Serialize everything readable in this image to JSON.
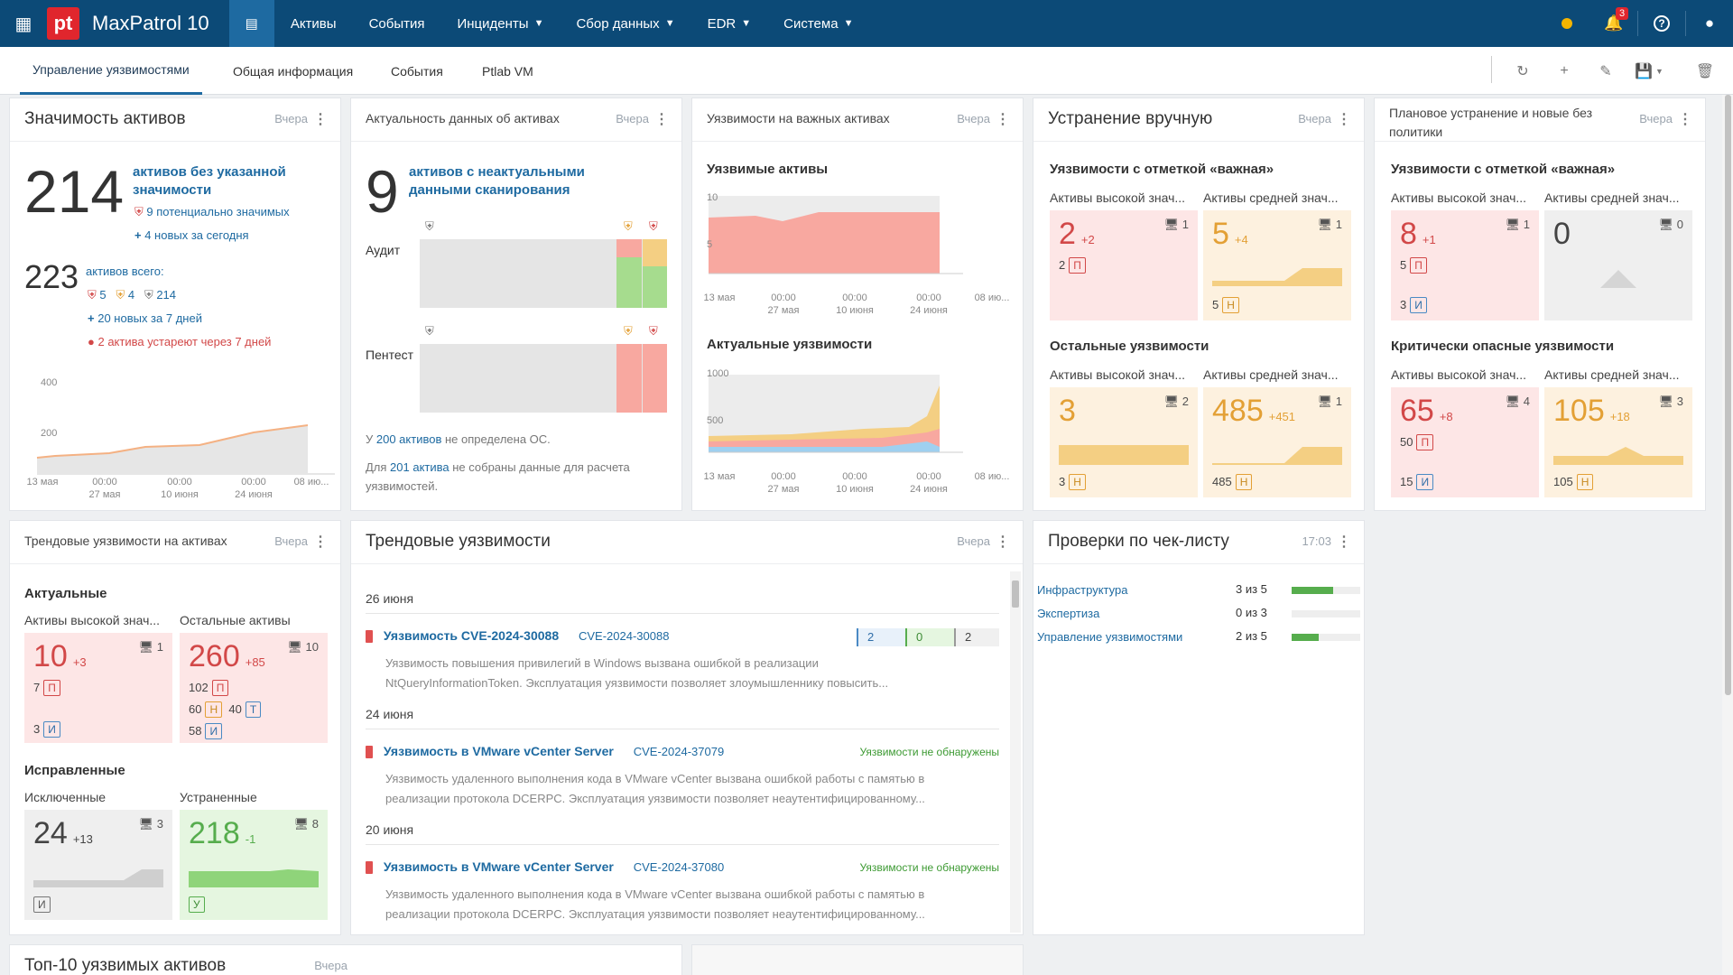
{
  "topbar": {
    "brand": "MaxPatrol 10",
    "logo": "pt",
    "nav": [
      {
        "label": "Активы",
        "dropdown": false
      },
      {
        "label": "События",
        "dropdown": false
      },
      {
        "label": "Инциденты",
        "dropdown": true
      },
      {
        "label": "Сбор данных",
        "dropdown": true
      },
      {
        "label": "EDR",
        "dropdown": true
      },
      {
        "label": "Система",
        "dropdown": true
      }
    ],
    "notifications_count": "3",
    "status_color": "#f5b400"
  },
  "tabs": [
    "Управление уязвимостями",
    "Общая информация",
    "События",
    "Ptlab VM"
  ],
  "w1": {
    "title": "Значимость активов",
    "date": "Вчера",
    "big": "214",
    "big_label": "активов без указанной значимости",
    "potential": "9 потенциально значимых",
    "new_today": "4 новых за сегодня",
    "total": "223",
    "total_label": "активов всего:",
    "c_red": "5",
    "c_yel": "4",
    "c_grey": "214",
    "new_week": "20 новых за 7 дней",
    "warning": "2 актива устареют через 7 дней"
  },
  "w2": {
    "title": "Актуальность данных об активах",
    "date": "Вчера",
    "big": "9",
    "big_label": "активов с неактуальными данными сканирования",
    "audit": "Аудит",
    "pentest": "Пентест",
    "os_pre": "У ",
    "os_link": "200 активов",
    "os_post": " не определена ОС.",
    "calc_pre": "Для ",
    "calc_link": "201 актива",
    "calc_post": " не собраны данные для расчета уязвимостей."
  },
  "w3": {
    "title": "Уязвимости на важных активах",
    "date": "Вчера",
    "s1": "Уязвимые активы",
    "s2": "Актуальные уязвимости",
    "y1_top": "10",
    "y1_mid": "5",
    "y2_top": "1000",
    "y2_mid": "500"
  },
  "axis": {
    "a1": "13 мая",
    "a2": "00:00",
    "a2b": "27 мая",
    "a3": "00:00",
    "a3b": "10 июня",
    "a4": "00:00",
    "a4b": "24 июня",
    "a5": "08 ию..."
  },
  "w4": {
    "title": "Устранение вручную",
    "date": "Вчера",
    "s1": "Уязвимости с отметкой «важная»",
    "s2": "Остальные уязвимости",
    "col_high": "Активы высокой знач...",
    "col_mid": "Активы средней знач...",
    "c1": {
      "num": "2",
      "delta": "+2",
      "mon": "1",
      "p": "2",
      "tag": "П"
    },
    "c2": {
      "num": "5",
      "delta": "+4",
      "mon": "1",
      "h": "5",
      "tag": "Н"
    },
    "c3": {
      "num": "3",
      "mon": "2",
      "h": "3",
      "tag": "Н"
    },
    "c4": {
      "num": "485",
      "delta": "+451",
      "mon": "1",
      "h": "485",
      "tag": "Н"
    }
  },
  "w5": {
    "title": "Плановое устранение и новые без политики",
    "date": "Вчера",
    "s1": "Уязвимости с отметкой «важная»",
    "s2": "Критически опасные уязвимости",
    "col_high": "Активы высокой знач...",
    "col_mid": "Активы средней знач...",
    "c1": {
      "num": "8",
      "delta": "+1",
      "mon": "1",
      "p": "5",
      "ptag": "П",
      "i": "3",
      "itag": "И"
    },
    "c2": {
      "num": "0",
      "mon": "0"
    },
    "c3": {
      "num": "65",
      "delta": "+8",
      "mon": "4",
      "p": "50",
      "ptag": "П",
      "i": "15",
      "itag": "И"
    },
    "c4": {
      "num": "105",
      "delta": "+18",
      "mon": "3",
      "h": "105",
      "tag": "Н"
    }
  },
  "w6": {
    "title": "Трендовые уязвимости на активах",
    "date": "Вчера",
    "s1": "Актуальные",
    "s2": "Исправленные",
    "col_high": "Активы высокой знач...",
    "col_other": "Остальные активы",
    "col_excl": "Исключенные",
    "col_fixed": "Устраненные",
    "c1": {
      "num": "10",
      "delta": "+3",
      "mon": "1",
      "p": "7",
      "ptag": "П",
      "i": "3",
      "itag": "И"
    },
    "c2": {
      "num": "260",
      "delta": "+85",
      "mon": "10",
      "p": "102",
      "ptag": "П",
      "h": "60",
      "htag": "Н",
      "t": "40",
      "ttag": "Т",
      "i": "58",
      "itag": "И"
    },
    "c3": {
      "num": "24",
      "delta": "+13",
      "mon": "3",
      "tag": "И"
    },
    "c4": {
      "num": "218",
      "delta": "-1",
      "mon": "8",
      "tag": "У"
    }
  },
  "w7": {
    "title": "Трендовые уязвимости",
    "date": "Вчера",
    "items": [
      {
        "date": "26 июня",
        "title": "Уязвимость CVE-2024-30088",
        "cve": "CVE-2024-30088",
        "desc1": "Уязвимость повышения привилегий в Windows вызвана ошибкой в реализации",
        "desc2": "NtQueryInformationToken. Эксплуатация уязвимости позволяет злоумышленнику повысить...",
        "stats": [
          "2",
          "0",
          "2"
        ]
      },
      {
        "date": "24 июня",
        "title": "Уязвимость в VMware vCenter Server",
        "cve": "CVE-2024-37079",
        "status": "Уязвимости не обнаружены",
        "desc1": "Уязвимость удаленного выполнения кода в VMware vCenter вызвана ошибкой работы с памятью в",
        "desc2": "реализации протокола DCERPC. Эксплуатация уязвимости позволяет неаутентифицированному..."
      },
      {
        "date": "20 июня",
        "title": "Уязвимость в VMware vCenter Server",
        "cve": "CVE-2024-37080",
        "status": "Уязвимости не обнаружены",
        "desc1": "Уязвимость удаленного выполнения кода в VMware vCenter вызвана ошибкой работы с памятью в",
        "desc2": "реализации протокола DCERPC. Эксплуатация уязвимости позволяет неаутентифицированному..."
      }
    ]
  },
  "w8": {
    "title": "Проверки по чек-листу",
    "date": "17:03",
    "rows": [
      {
        "label": "Инфраструктура",
        "value": "3 из 5",
        "fraction": 0.6
      },
      {
        "label": "Экспертиза",
        "value": "0 из 3",
        "fraction": 0
      },
      {
        "label": "Управление уязвимостями",
        "value": "2 из 5",
        "fraction": 0.4
      }
    ]
  },
  "w9": {
    "title": "Топ-10 уязвимых активов",
    "date": "Вчера"
  },
  "colors": {
    "accent": "#1e6aa1",
    "topbar": "#0c4a77",
    "danger": "#d24848",
    "warning": "#e3a035",
    "success": "#56ad4d"
  }
}
